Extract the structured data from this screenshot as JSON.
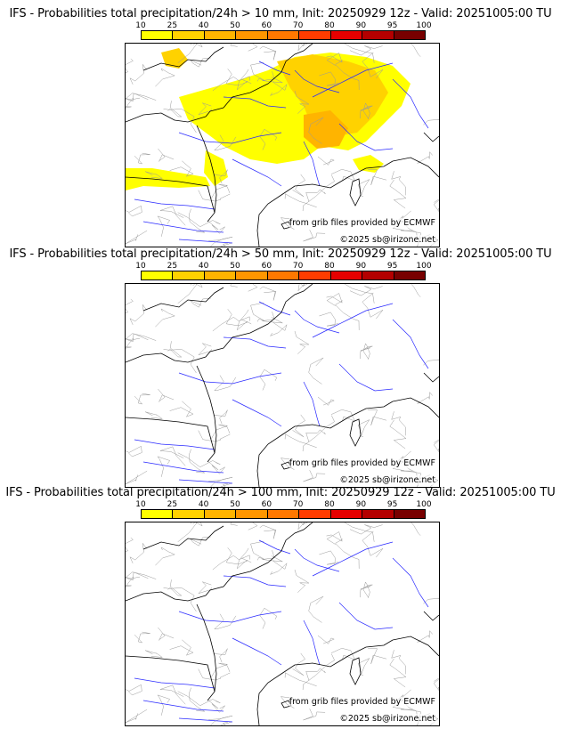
{
  "panels": [
    {
      "title": "IFS - Probabilities total precipitation/24h > 10 mm, Init: 20250929 12z - Valid: 20251005:00 TU",
      "threshold": "10 mm",
      "has_precip": true
    },
    {
      "title": "IFS - Probabilities total precipitation/24h > 50 mm, Init: 20250929 12z - Valid: 20251005:00 TU",
      "threshold": "50 mm",
      "has_precip": false
    },
    {
      "title": "IFS - Probabilities total precipitation/24h > 100 mm, Init: 20250929 12z - Valid: 20251005:00 TU",
      "threshold": "100 mm",
      "has_precip": false
    }
  ],
  "colorbar": {
    "ticks": [
      "10",
      "25",
      "40",
      "50",
      "60",
      "70",
      "80",
      "90",
      "95",
      "100"
    ],
    "colors": [
      "#ffff00",
      "#ffd200",
      "#ffb400",
      "#ff9600",
      "#ff7800",
      "#ff3c00",
      "#e60000",
      "#b40000",
      "#780000"
    ]
  },
  "credits": {
    "source": "from grib files provided by ECMWF",
    "copyright": "©2025 sb@irizone.net"
  },
  "map_colors": {
    "land": "#ffffff",
    "borders": "#9a9a9a",
    "coast": "#000000",
    "rivers": "#2a2aff",
    "precip_low": "#ffff00",
    "precip_mid": "#ffd200",
    "precip_high": "#ffb400"
  }
}
